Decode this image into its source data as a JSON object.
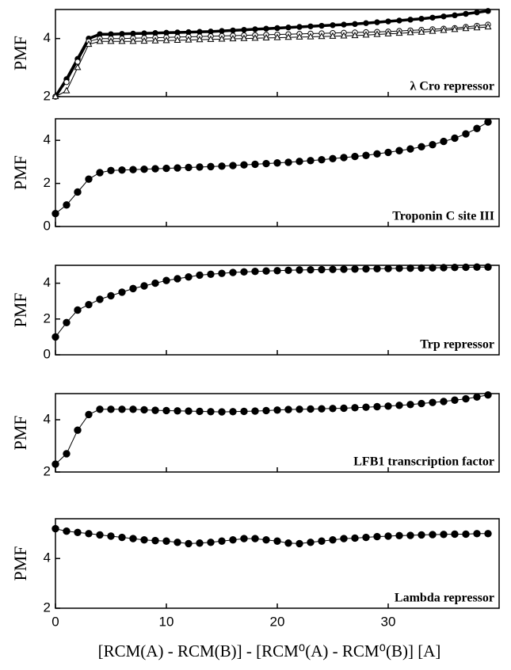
{
  "chart_data": [
    {
      "type": "scatter",
      "ylabel": "PMF",
      "annotation": "λ Cro repressor",
      "x": [
        0,
        1,
        2,
        3,
        4,
        5,
        6,
        7,
        8,
        9,
        10,
        11,
        12,
        13,
        14,
        15,
        16,
        17,
        18,
        19,
        20,
        21,
        22,
        23,
        24,
        25,
        26,
        27,
        28,
        29,
        30,
        31,
        32,
        33,
        34,
        35,
        36,
        37,
        38,
        39
      ],
      "xlim": [
        0,
        40
      ],
      "xticks": [
        0,
        10,
        20,
        30
      ],
      "ylim": [
        2,
        5
      ],
      "yticks": [
        2,
        4
      ],
      "series": [
        {
          "color": "#000000",
          "marker": "filled-circle",
          "line_width": 3.5,
          "values": [
            2.0,
            2.6,
            3.3,
            4.0,
            4.15,
            4.15,
            4.16,
            4.17,
            4.18,
            4.19,
            4.2,
            4.21,
            4.22,
            4.23,
            4.24,
            4.26,
            4.28,
            4.3,
            4.32,
            4.34,
            4.36,
            4.38,
            4.4,
            4.42,
            4.44,
            4.46,
            4.48,
            4.5,
            4.53,
            4.56,
            4.59,
            4.62,
            4.65,
            4.68,
            4.72,
            4.76,
            4.8,
            4.85,
            4.9,
            4.95
          ]
        },
        {
          "color": "#000000",
          "marker": "open-circle",
          "line_width": 1,
          "values": [
            2.0,
            2.5,
            3.2,
            3.9,
            4.0,
            4.0,
            4.0,
            4.01,
            4.02,
            4.03,
            4.04,
            4.05,
            4.06,
            4.07,
            4.08,
            4.09,
            4.1,
            4.11,
            4.12,
            4.13,
            4.14,
            4.15,
            4.16,
            4.17,
            4.18,
            4.19,
            4.2,
            4.21,
            4.22,
            4.23,
            4.24,
            4.26,
            4.28,
            4.3,
            4.32,
            4.34,
            4.36,
            4.4,
            4.44,
            4.48
          ]
        },
        {
          "color": "#000000",
          "marker": "open-triangle",
          "line_width": 1,
          "values": [
            2.0,
            2.2,
            3.0,
            3.8,
            3.9,
            3.9,
            3.9,
            3.9,
            3.91,
            3.92,
            3.93,
            3.94,
            3.95,
            3.96,
            3.97,
            3.98,
            3.99,
            4.0,
            4.01,
            4.02,
            4.03,
            4.04,
            4.05,
            4.06,
            4.07,
            4.08,
            4.09,
            4.1,
            4.12,
            4.14,
            4.16,
            4.18,
            4.2,
            4.22,
            4.25,
            4.28,
            4.31,
            4.34,
            4.37,
            4.4
          ]
        }
      ]
    },
    {
      "type": "scatter",
      "ylabel": "PMF",
      "annotation": "Troponin C site III",
      "x": [
        0,
        1,
        2,
        3,
        4,
        5,
        6,
        7,
        8,
        9,
        10,
        11,
        12,
        13,
        14,
        15,
        16,
        17,
        18,
        19,
        20,
        21,
        22,
        23,
        24,
        25,
        26,
        27,
        28,
        29,
        30,
        31,
        32,
        33,
        34,
        35,
        36,
        37,
        38,
        39
      ],
      "xlim": [
        0,
        40
      ],
      "xticks": [
        0,
        10,
        20,
        30
      ],
      "ylim": [
        0,
        5
      ],
      "yticks": [
        0,
        2,
        4
      ],
      "series": [
        {
          "color": "#000000",
          "marker": "filled-circle",
          "line_width": 1,
          "values": [
            0.6,
            1.0,
            1.6,
            2.2,
            2.5,
            2.6,
            2.62,
            2.64,
            2.66,
            2.68,
            2.7,
            2.72,
            2.74,
            2.76,
            2.78,
            2.8,
            2.83,
            2.86,
            2.89,
            2.92,
            2.95,
            2.98,
            3.02,
            3.06,
            3.1,
            3.15,
            3.2,
            3.25,
            3.3,
            3.37,
            3.44,
            3.52,
            3.6,
            3.7,
            3.8,
            3.95,
            4.1,
            4.3,
            4.55,
            4.85
          ]
        }
      ]
    },
    {
      "type": "scatter",
      "ylabel": "PMF",
      "annotation": "Trp repressor",
      "x": [
        0,
        1,
        2,
        3,
        4,
        5,
        6,
        7,
        8,
        9,
        10,
        11,
        12,
        13,
        14,
        15,
        16,
        17,
        18,
        19,
        20,
        21,
        22,
        23,
        24,
        25,
        26,
        27,
        28,
        29,
        30,
        31,
        32,
        33,
        34,
        35,
        36,
        37,
        38,
        39
      ],
      "xlim": [
        0,
        40
      ],
      "xticks": [
        0,
        10,
        20,
        30
      ],
      "ylim": [
        0,
        5
      ],
      "yticks": [
        0,
        2,
        4
      ],
      "series": [
        {
          "color": "#000000",
          "marker": "filled-circle",
          "line_width": 1,
          "values": [
            1.0,
            1.8,
            2.5,
            2.8,
            3.1,
            3.3,
            3.5,
            3.7,
            3.85,
            4.0,
            4.15,
            4.25,
            4.35,
            4.45,
            4.5,
            4.55,
            4.6,
            4.63,
            4.66,
            4.68,
            4.7,
            4.72,
            4.74,
            4.75,
            4.76,
            4.77,
            4.78,
            4.79,
            4.8,
            4.81,
            4.82,
            4.83,
            4.84,
            4.85,
            4.86,
            4.87,
            4.88,
            4.89,
            4.9,
            4.9
          ]
        }
      ]
    },
    {
      "type": "scatter",
      "ylabel": "PMF",
      "annotation": "LFB1 transcription factor",
      "x": [
        0,
        1,
        2,
        3,
        4,
        5,
        6,
        7,
        8,
        9,
        10,
        11,
        12,
        13,
        14,
        15,
        16,
        17,
        18,
        19,
        20,
        21,
        22,
        23,
        24,
        25,
        26,
        27,
        28,
        29,
        30,
        31,
        32,
        33,
        34,
        35,
        36,
        37,
        38,
        39
      ],
      "xlim": [
        0,
        40
      ],
      "xticks": [
        0,
        10,
        20,
        30
      ],
      "ylim": [
        2,
        5
      ],
      "yticks": [
        2,
        4
      ],
      "series": [
        {
          "color": "#000000",
          "marker": "filled-circle",
          "line_width": 1,
          "values": [
            2.3,
            2.7,
            3.6,
            4.2,
            4.4,
            4.4,
            4.4,
            4.4,
            4.38,
            4.36,
            4.35,
            4.34,
            4.33,
            4.32,
            4.31,
            4.3,
            4.31,
            4.32,
            4.33,
            4.35,
            4.37,
            4.39,
            4.4,
            4.41,
            4.42,
            4.43,
            4.44,
            4.46,
            4.48,
            4.5,
            4.52,
            4.55,
            4.58,
            4.62,
            4.66,
            4.7,
            4.75,
            4.8,
            4.87,
            4.95
          ]
        }
      ]
    },
    {
      "type": "scatter",
      "ylabel": "PMF",
      "annotation": "Lambda repressor",
      "xlabel": "[RCM(A) - RCM(B)] - [RCM⁰(A) - RCM⁰(B)] [A]",
      "x": [
        0,
        1,
        2,
        3,
        4,
        5,
        6,
        7,
        8,
        9,
        10,
        11,
        12,
        13,
        14,
        15,
        16,
        17,
        18,
        19,
        20,
        21,
        22,
        23,
        24,
        25,
        26,
        27,
        28,
        29,
        30,
        31,
        32,
        33,
        34,
        35,
        36,
        37,
        38,
        39
      ],
      "xlim": [
        0,
        40
      ],
      "xticks": [
        0,
        10,
        20,
        30
      ],
      "ylim": [
        2,
        5.6
      ],
      "yticks": [
        2,
        4
      ],
      "series": [
        {
          "color": "#000000",
          "marker": "filled-circle",
          "line_width": 1,
          "values": [
            5.2,
            5.1,
            5.05,
            5.0,
            4.95,
            4.9,
            4.85,
            4.8,
            4.75,
            4.72,
            4.7,
            4.65,
            4.6,
            4.62,
            4.65,
            4.7,
            4.75,
            4.8,
            4.8,
            4.75,
            4.7,
            4.62,
            4.6,
            4.65,
            4.7,
            4.75,
            4.8,
            4.82,
            4.85,
            4.88,
            4.9,
            4.92,
            4.93,
            4.95,
            4.96,
            4.97,
            4.98,
            4.98,
            5.0,
            5.0
          ]
        }
      ]
    }
  ]
}
